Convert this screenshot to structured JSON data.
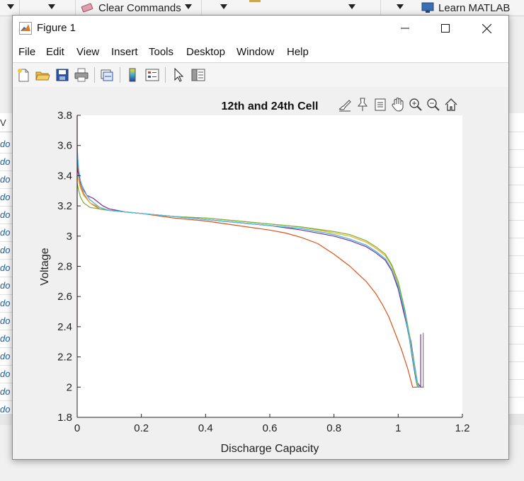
{
  "background": {
    "clear_commands_label": "Clear Commands",
    "learn_label": "Learn MATLAB",
    "workspace_header": "V",
    "workspace_rows": [
      "do",
      "do",
      "do",
      "do",
      "do",
      "do",
      "do",
      "do",
      "do",
      "do",
      "do",
      "do",
      "do",
      "do",
      "do",
      "do"
    ]
  },
  "window": {
    "title": "Figure 1",
    "icon": "matlab-icon",
    "controls": [
      "minimize-icon",
      "maximize-icon",
      "close-icon"
    ]
  },
  "menu": [
    "File",
    "Edit",
    "View",
    "Insert",
    "Tools",
    "Desktop",
    "Window",
    "Help"
  ],
  "toolbar": [
    "new-figure-icon",
    "open-file-icon",
    "save-icon",
    "print-icon",
    "link-plot-icon",
    "insert-colorbar-icon",
    "insert-legend-icon",
    "edit-plot-icon",
    "property-inspector-icon"
  ],
  "axes_toolbar": [
    "brush-icon",
    "data-tips-icon",
    "restore-view-icon",
    "pan-icon",
    "zoom-in-icon",
    "zoom-out-icon",
    "home-icon"
  ],
  "chart_data": {
    "type": "line",
    "title": "12th and 24th Cell",
    "xlabel": "Discharge Capacity",
    "ylabel": "Voltage",
    "xlim": [
      0,
      1.2
    ],
    "ylim": [
      1.8,
      3.8
    ],
    "xticks": [
      "0",
      "0.2",
      "0.4",
      "0.6",
      "0.8",
      "1",
      "1.2"
    ],
    "yticks": [
      "1.8",
      "2",
      "2.2",
      "2.4",
      "2.6",
      "2.8",
      "3",
      "3.2",
      "3.4",
      "3.6",
      "3.8"
    ],
    "grid": false,
    "legend": null,
    "series": [
      {
        "color": "#0072BD",
        "x": [
          0,
          0.002,
          0.005,
          0.01,
          0.02,
          0.04,
          0.07,
          0.1,
          0.15,
          0.2,
          0.3,
          0.4,
          0.5,
          0.6,
          0.7,
          0.8,
          0.85,
          0.9,
          0.93,
          0.96,
          0.98,
          1.0,
          1.02,
          1.035,
          1.045,
          1.055,
          1.06,
          1.06
        ],
        "y": [
          3.55,
          3.5,
          3.43,
          3.36,
          3.3,
          3.24,
          3.19,
          3.17,
          3.16,
          3.15,
          3.13,
          3.11,
          3.09,
          3.07,
          3.05,
          3.01,
          2.98,
          2.94,
          2.9,
          2.85,
          2.78,
          2.66,
          2.48,
          2.32,
          2.18,
          2.05,
          2.0,
          2.0
        ]
      },
      {
        "color": "#D95319",
        "x": [
          0,
          0.002,
          0.005,
          0.01,
          0.02,
          0.04,
          0.07,
          0.1,
          0.15,
          0.2,
          0.3,
          0.4,
          0.5,
          0.6,
          0.65,
          0.7,
          0.75,
          0.8,
          0.85,
          0.88,
          0.9,
          0.93,
          0.95,
          0.97,
          0.99,
          1.01,
          1.03,
          1.045,
          1.055,
          1.065,
          1.08
        ],
        "y": [
          3.5,
          3.45,
          3.4,
          3.34,
          3.28,
          3.22,
          3.18,
          3.17,
          3.16,
          3.15,
          3.12,
          3.1,
          3.07,
          3.04,
          3.02,
          2.99,
          2.95,
          2.88,
          2.8,
          2.74,
          2.7,
          2.62,
          2.55,
          2.47,
          2.36,
          2.25,
          2.12,
          2.0,
          2.0,
          2.0,
          2.0
        ]
      },
      {
        "color": "#EDB120",
        "x": [
          0,
          0.005,
          0.01,
          0.02,
          0.04,
          0.07,
          0.1,
          0.15,
          0.2,
          0.3,
          0.4,
          0.5,
          0.6,
          0.7,
          0.8,
          0.85,
          0.9,
          0.93,
          0.96,
          0.98,
          1.0,
          1.02,
          1.035,
          1.045,
          1.055,
          1.06
        ],
        "y": [
          3.4,
          3.36,
          3.32,
          3.27,
          3.22,
          3.19,
          3.17,
          3.16,
          3.15,
          3.13,
          3.12,
          3.1,
          3.08,
          3.06,
          3.02,
          3.0,
          2.96,
          2.92,
          2.87,
          2.8,
          2.68,
          2.5,
          2.33,
          2.2,
          2.07,
          2.0
        ]
      },
      {
        "color": "#7E2F8E",
        "x": [
          0,
          0.005,
          0.01,
          0.02,
          0.03,
          0.05,
          0.08,
          0.1,
          0.15,
          0.2,
          0.3,
          0.4,
          0.5,
          0.6,
          0.7,
          0.8,
          0.85,
          0.9,
          0.93,
          0.96,
          0.98,
          1.0,
          1.02,
          1.04,
          1.05,
          1.06,
          1.07,
          1.07
        ],
        "y": [
          3.45,
          3.4,
          3.36,
          3.31,
          3.27,
          3.25,
          3.2,
          3.18,
          3.16,
          3.15,
          3.13,
          3.11,
          3.09,
          3.07,
          3.04,
          3.0,
          2.97,
          2.93,
          2.89,
          2.84,
          2.77,
          2.65,
          2.47,
          2.3,
          2.16,
          2.03,
          2.0,
          2.35
        ]
      },
      {
        "color": "#77AC30",
        "x": [
          0,
          0.005,
          0.01,
          0.02,
          0.04,
          0.07,
          0.1,
          0.15,
          0.2,
          0.3,
          0.4,
          0.5,
          0.6,
          0.7,
          0.8,
          0.85,
          0.9,
          0.93,
          0.96,
          0.98,
          1.0,
          1.02,
          1.035,
          1.045,
          1.055,
          1.06,
          1.065
        ],
        "y": [
          3.35,
          3.3,
          3.26,
          3.22,
          3.19,
          3.18,
          3.17,
          3.16,
          3.15,
          3.13,
          3.12,
          3.1,
          3.08,
          3.06,
          3.03,
          3.01,
          2.97,
          2.93,
          2.88,
          2.81,
          2.7,
          2.52,
          2.35,
          2.22,
          2.08,
          2.01,
          2.0
        ]
      },
      {
        "color": "#4DBEEE",
        "x": [
          0,
          0.002,
          0.005,
          0.01,
          0.02,
          0.04,
          0.07,
          0.1,
          0.15,
          0.2,
          0.3,
          0.4,
          0.5,
          0.6,
          0.7,
          0.8,
          0.85,
          0.9,
          0.93,
          0.96,
          0.98,
          1.0,
          1.02,
          1.035,
          1.05,
          1.06,
          1.065,
          1.075
        ],
        "y": [
          3.6,
          3.52,
          3.44,
          3.37,
          3.3,
          3.24,
          3.19,
          3.17,
          3.16,
          3.15,
          3.13,
          3.11,
          3.09,
          3.07,
          3.05,
          3.01,
          2.98,
          2.94,
          2.9,
          2.85,
          2.78,
          2.67,
          2.5,
          2.33,
          2.15,
          2.03,
          2.0,
          2.0
        ]
      },
      {
        "color": "#A2142F",
        "x": [
          0.0,
          0.0
        ],
        "y": [
          2.4,
          3.8
        ]
      },
      {
        "color": "#808080",
        "x": [
          1.068,
          1.075,
          1.078,
          1.078
        ],
        "y": [
          2.0,
          2.0,
          2.0,
          2.36
        ]
      }
    ]
  }
}
